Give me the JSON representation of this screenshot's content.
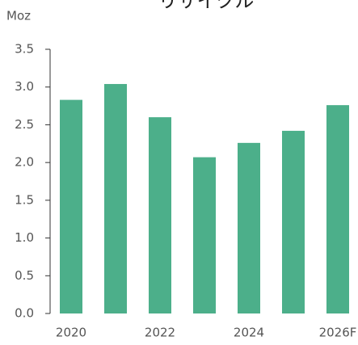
{
  "chart_data": {
    "type": "bar",
    "title": "リサイクル",
    "y_label": "Moz",
    "categories": [
      "2020",
      null,
      "2022",
      null,
      "2024",
      null,
      "2026F"
    ],
    "values": [
      2.83,
      3.04,
      2.6,
      2.07,
      2.26,
      2.42,
      2.76
    ],
    "color": "#4caf8a",
    "ylim": [
      0,
      3.5
    ],
    "yticks": [
      {
        "value": 0,
        "label": "0.0"
      },
      0.5,
      {
        "value": 1,
        "label": "1.0"
      },
      1.5,
      {
        "value": 2,
        "label": "2.0"
      },
      2.5,
      {
        "value": 3,
        "label": "3.0"
      },
      3.5
    ],
    "grid": false
  }
}
